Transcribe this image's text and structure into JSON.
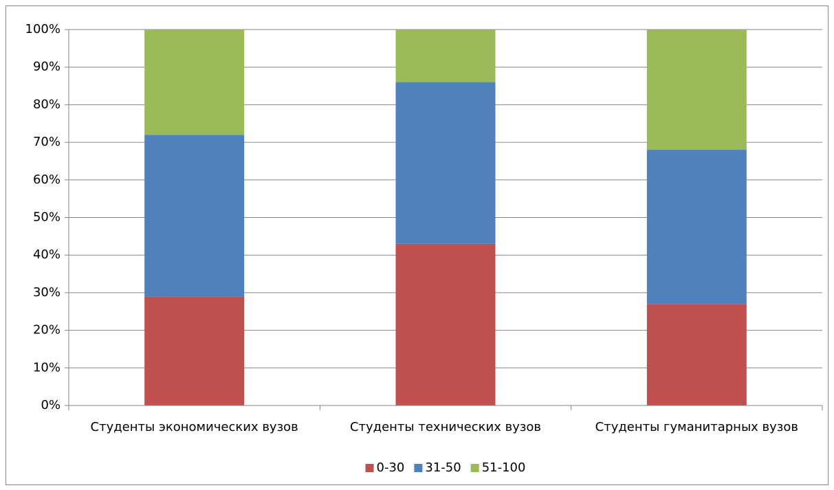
{
  "chart_data": {
    "type": "stacked_bar",
    "categories": [
      "Студенты экономических вузов",
      "Студенты технических вузов",
      "Студенты гуманитарных вузов"
    ],
    "series": [
      {
        "name": "0-30",
        "color": "#c0504d",
        "values": [
          29,
          43,
          27
        ]
      },
      {
        "name": "31-50",
        "color": "#4f81bd",
        "values": [
          43,
          43,
          41
        ]
      },
      {
        "name": "51-100",
        "color": "#9bbb59",
        "values": [
          28,
          14,
          32
        ]
      }
    ],
    "ylim": [
      0,
      100
    ],
    "yticks": [
      {
        "value": 0,
        "label": "0%"
      },
      {
        "value": 10,
        "label": "10%"
      },
      {
        "value": 20,
        "label": "20%"
      },
      {
        "value": 30,
        "label": "30%"
      },
      {
        "value": 40,
        "label": "40%"
      },
      {
        "value": 50,
        "label": "50%"
      },
      {
        "value": 60,
        "label": "60%"
      },
      {
        "value": 70,
        "label": "70%"
      },
      {
        "value": 80,
        "label": "80%"
      },
      {
        "value": 90,
        "label": "90%"
      },
      {
        "value": 100,
        "label": "100%"
      }
    ],
    "grid": true,
    "legend": "bottom"
  }
}
